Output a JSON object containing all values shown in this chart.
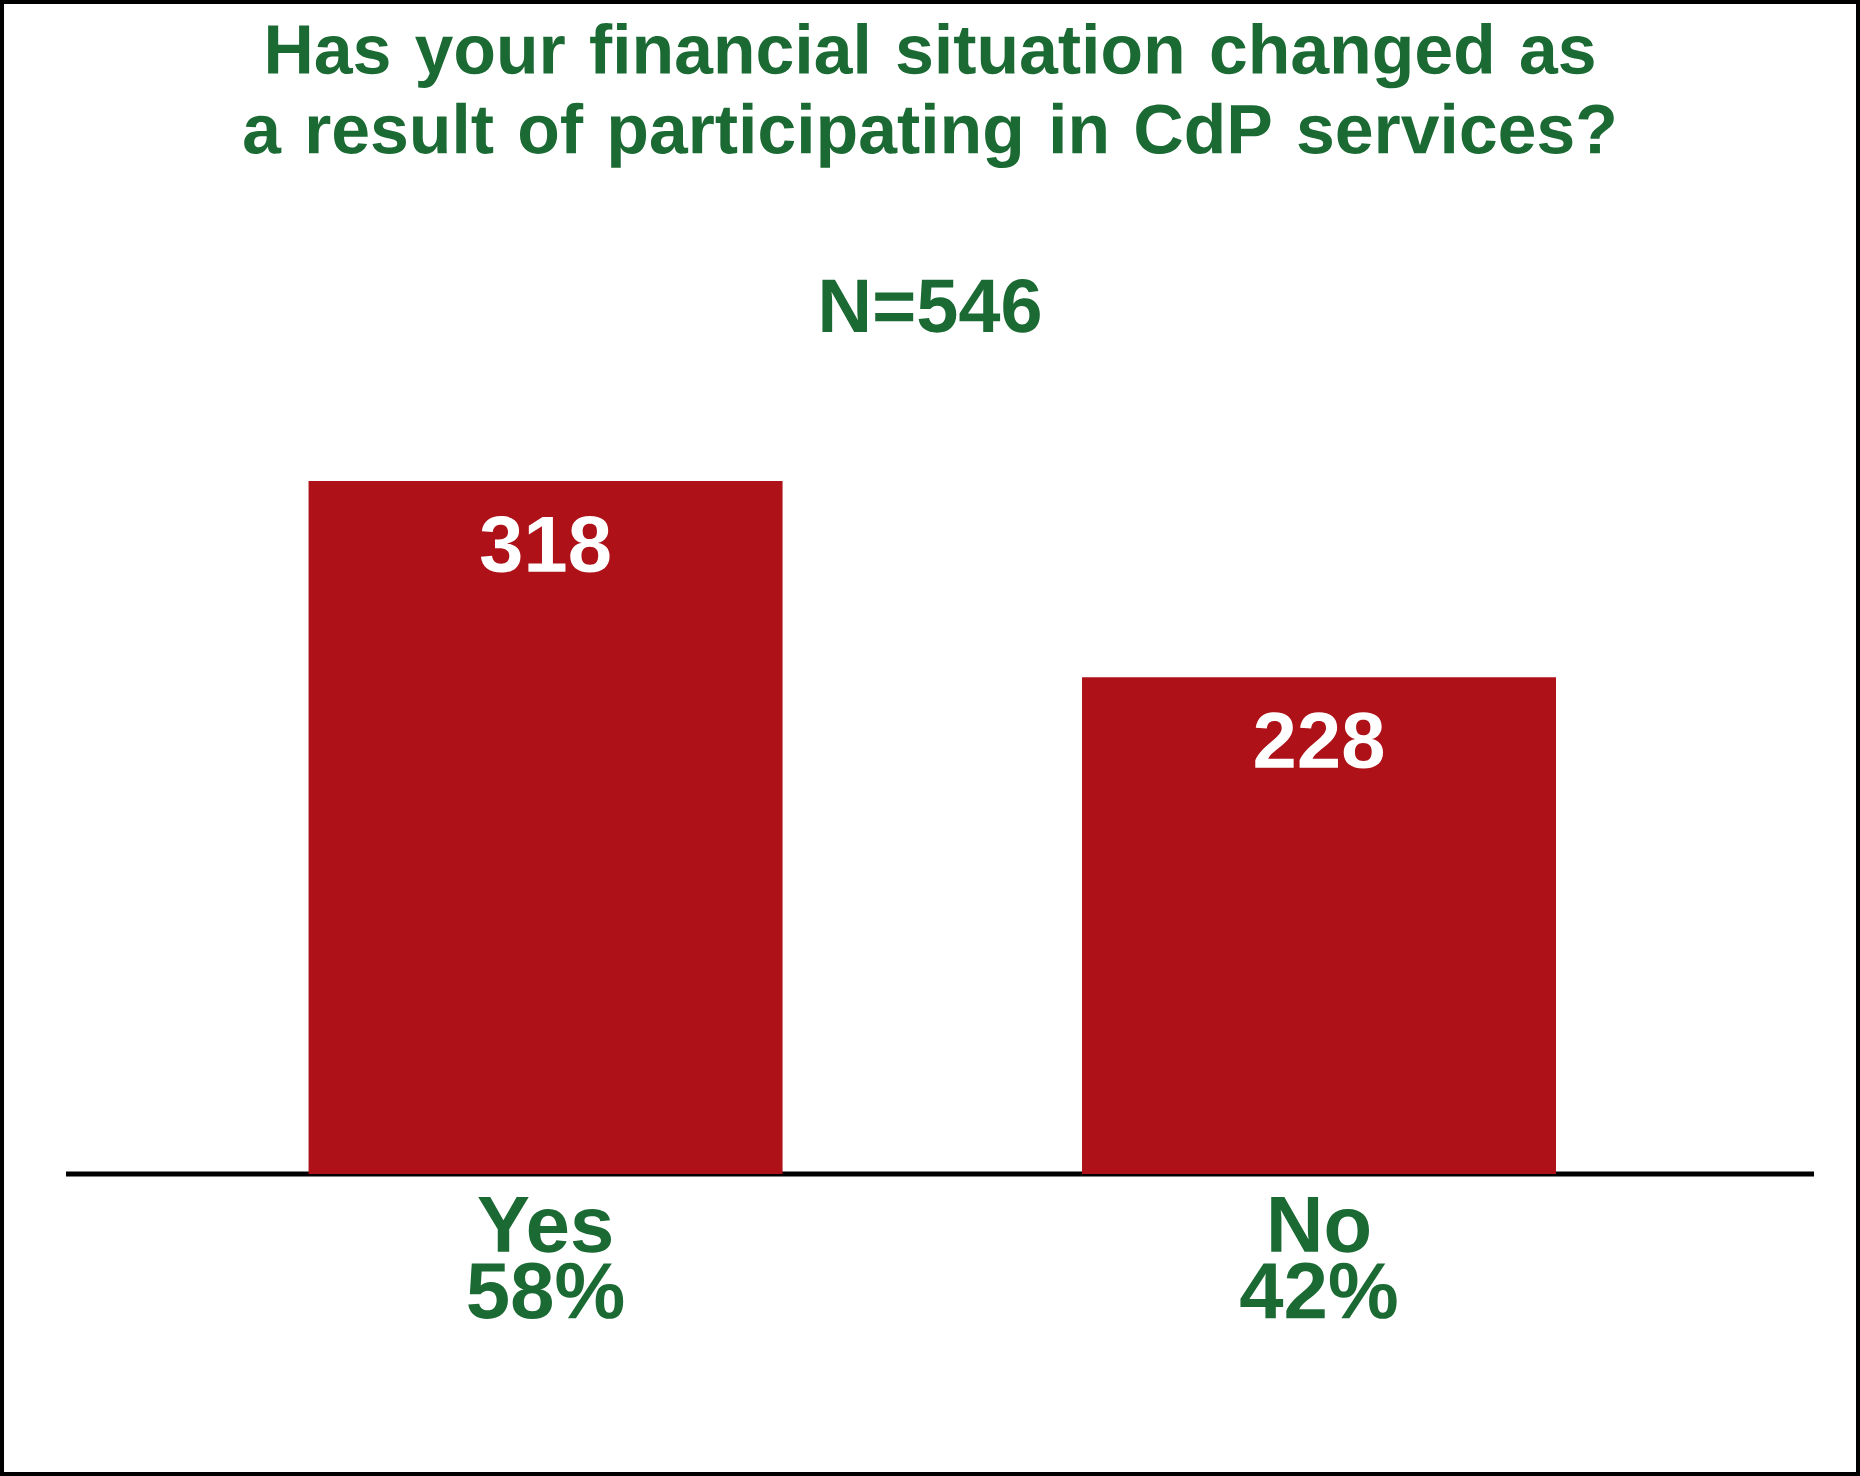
{
  "chart_data": {
    "type": "bar",
    "title": "Has your financial situation changed as a result of participating in CdP services?",
    "subtitle": "N=546",
    "categories": [
      "Yes",
      "No"
    ],
    "values": [
      318,
      228
    ],
    "color": "#ae1118",
    "value_labels": [
      "318",
      "228"
    ],
    "annotations": [
      "58%",
      "42%"
    ]
  }
}
